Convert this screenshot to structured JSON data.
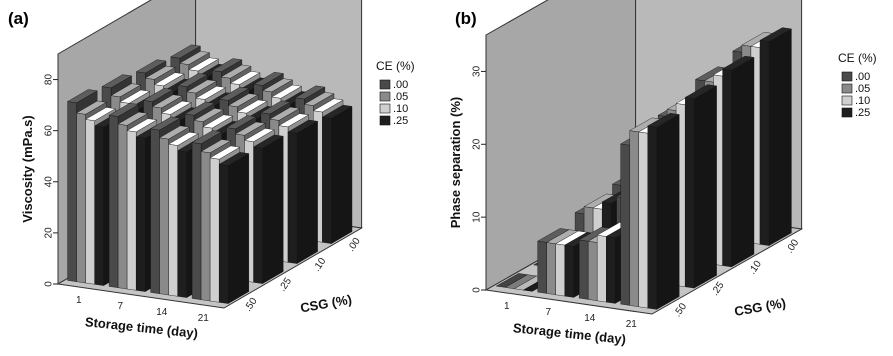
{
  "chart_data": [
    {
      "panel_label": "(a)",
      "type": "bar3d",
      "ylabel": "Viscosity (mPa.s)",
      "xlabel": "Storage time (day)",
      "zlabel": "CSG (%)",
      "legend_title": "CE (%)",
      "legend_position": "right",
      "yticks": [
        "0",
        "20",
        "40",
        "60",
        "80"
      ],
      "ylim": [
        0,
        90
      ],
      "x_categories": [
        "1",
        "7",
        "14",
        "21"
      ],
      "z_categories": [
        ".50",
        ".25",
        ".10",
        ".00"
      ],
      "series": [
        {
          "name": ".00",
          "color": "#4a4a4a"
        },
        {
          "name": ".05",
          "color": "#8a8a8a"
        },
        {
          "name": ".10",
          "color": "#cfcfcf"
        },
        {
          "name": ".25",
          "color": "#1e1e1e"
        }
      ],
      "values": [
        [
          [
            70,
            66,
            64,
            62
          ],
          [
            68,
            65,
            63,
            61
          ],
          [
            66,
            64,
            62,
            60
          ],
          [
            64,
            62,
            60,
            58
          ]
        ],
        [
          [
            67,
            64,
            62,
            60
          ],
          [
            65,
            63,
            61,
            59
          ],
          [
            63,
            61,
            59,
            57
          ],
          [
            61,
            59,
            57,
            55
          ]
        ],
        [
          [
            64,
            61,
            59,
            57
          ],
          [
            62,
            60,
            58,
            56
          ],
          [
            60,
            58,
            56,
            54
          ],
          [
            58,
            56,
            54,
            52
          ]
        ],
        [
          [
            61,
            58,
            56,
            54
          ],
          [
            59,
            57,
            55,
            53
          ],
          [
            57,
            55,
            53,
            51
          ],
          [
            55,
            53,
            51,
            49
          ]
        ]
      ]
    },
    {
      "panel_label": "(b)",
      "type": "bar3d",
      "ylabel": "Phase separation (%)",
      "xlabel": "Storage time (day)",
      "zlabel": "CSG (%)",
      "legend_title": "CE (%)",
      "legend_position": "right",
      "yticks": [
        "0",
        "10",
        "20",
        "30"
      ],
      "ylim": [
        0,
        35
      ],
      "x_categories": [
        "1",
        "7",
        "14",
        "21"
      ],
      "z_categories": [
        ".50",
        ".25",
        ".10",
        ".00"
      ],
      "series": [
        {
          "name": ".00",
          "color": "#4a4a4a"
        },
        {
          "name": ".05",
          "color": "#8a8a8a"
        },
        {
          "name": ".10",
          "color": "#cfcfcf"
        },
        {
          "name": ".25",
          "color": "#1e1e1e"
        }
      ],
      "values": [
        [
          [
            0,
            0,
            0,
            0
          ],
          [
            0,
            0,
            0,
            0
          ],
          [
            0,
            0,
            0,
            0
          ],
          [
            0,
            0,
            0,
            0
          ]
        ],
        [
          [
            7,
            7,
            7,
            7
          ],
          [
            8,
            9,
            9,
            10
          ],
          [
            9,
            10,
            10,
            11
          ],
          [
            10,
            11,
            12,
            13
          ]
        ],
        [
          [
            8,
            8,
            9,
            9
          ],
          [
            11,
            12,
            13,
            14
          ],
          [
            15,
            16,
            17,
            18
          ],
          [
            17,
            18,
            19,
            20
          ]
        ],
        [
          [
            22,
            24,
            24,
            25
          ],
          [
            23,
            24,
            25,
            26
          ],
          [
            25,
            25,
            26,
            27
          ],
          [
            26,
            27,
            27,
            28
          ]
        ]
      ]
    }
  ]
}
